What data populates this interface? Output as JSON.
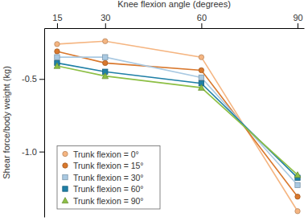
{
  "chart_data": {
    "type": "line",
    "x_label": "Knee flexion angle (degrees)",
    "y_label": "Shear force/body weight (kg)",
    "x": [
      15,
      30,
      60,
      90
    ],
    "xlim": [
      11,
      92
    ],
    "xticks": [
      15,
      30,
      60,
      90
    ],
    "ylim": [
      -1.45,
      -0.15
    ],
    "yticks": [
      -0.5,
      {
        "value": -1,
        "label": "-1.0"
      }
    ],
    "legend": "lower left",
    "series": [
      {
        "name": "Trunk flexion = 0°",
        "color": "#f5b581",
        "marker": "circle",
        "values": [
          -0.26,
          -0.24,
          -0.35,
          -1.41
        ]
      },
      {
        "name": "Trunk flexion = 15°",
        "color": "#d9782d",
        "marker": "circle",
        "values": [
          -0.31,
          -0.39,
          -0.44,
          -1.31
        ]
      },
      {
        "name": "Trunk flexion = 30°",
        "color": "#a9c9e2",
        "marker": "square",
        "values": [
          -0.35,
          -0.35,
          -0.49,
          -1.23
        ]
      },
      {
        "name": "Trunk flexion = 60°",
        "color": "#1f7fa6",
        "marker": "square",
        "values": [
          -0.39,
          -0.45,
          -0.53,
          -1.18
        ]
      },
      {
        "name": "Trunk flexion = 90°",
        "color": "#8dbf45",
        "marker": "triangle",
        "values": [
          -0.41,
          -0.48,
          -0.56,
          -1.16
        ]
      }
    ]
  }
}
